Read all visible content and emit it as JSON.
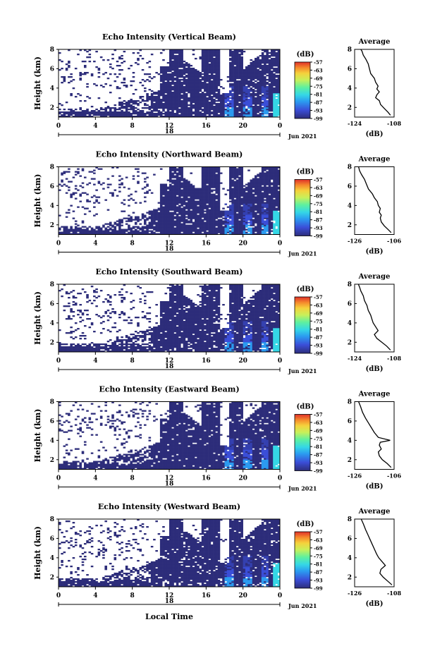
{
  "figure": {
    "xlabel": "Local Time",
    "date_label": "Jun 2021",
    "day_label": "18",
    "colorbar_unit": "(dB)",
    "colorbar_ticks": [
      "-57",
      "-63",
      "-69",
      "-75",
      "-81",
      "-87",
      "-93",
      "-99"
    ],
    "colors": {
      "background_echo": "#2d2d7a",
      "colorbar_stops": [
        "#2d2d7a",
        "#3b4ed8",
        "#2b9bf0",
        "#35d7e6",
        "#5ef0a0",
        "#c8f05a",
        "#f5d23c",
        "#f58a2c",
        "#e0302a"
      ]
    }
  },
  "chart_data": [
    {
      "type": "heatmap",
      "title": "Echo Intensity (Vertical Beam)",
      "ylabel": "Height (km)",
      "xticks": [
        "0",
        "4",
        "8",
        "12",
        "16",
        "20",
        "0"
      ],
      "yticks": [
        "2",
        "4",
        "6",
        "8"
      ],
      "ylim": [
        1,
        8
      ],
      "xlim": [
        0,
        24
      ],
      "clim": [
        -99,
        -57
      ],
      "profile": {
        "title": "Average",
        "xlabel": "(dB)",
        "xticks": [
          "-124",
          "-108"
        ],
        "xlim": [
          -124,
          -108
        ],
        "yticks": [
          "2",
          "4",
          "6",
          "8"
        ],
        "x": [
          -109.5,
          -110.5,
          -112,
          -113.5,
          -114,
          -115.5,
          -115,
          -114,
          -115,
          -114.5,
          -115.5,
          -116,
          -117.5,
          -118,
          -118.5,
          -119.5,
          -120.5,
          -121,
          -121.5
        ],
        "y": [
          1.2,
          1.5,
          1.9,
          2.3,
          2.7,
          3.0,
          3.3,
          3.6,
          3.9,
          4.2,
          4.6,
          5.0,
          5.5,
          6.0,
          6.5,
          7.0,
          7.4,
          7.8,
          8.0
        ]
      }
    },
    {
      "type": "heatmap",
      "title": "Echo Intensity (Northward Beam)",
      "ylabel": "Height (km)",
      "xticks": [
        "0",
        "4",
        "8",
        "12",
        "16",
        "20",
        "0"
      ],
      "yticks": [
        "2",
        "4",
        "6",
        "8"
      ],
      "ylim": [
        1,
        8
      ],
      "xlim": [
        0,
        24
      ],
      "clim": [
        -99,
        -57
      ],
      "profile": {
        "title": "Average",
        "xlabel": "(dB)",
        "xticks": [
          "-126",
          "-106"
        ],
        "xlim": [
          -126,
          -106
        ],
        "yticks": [
          "2",
          "4",
          "6",
          "8"
        ],
        "x": [
          -107.5,
          -109,
          -111,
          -112.5,
          -113,
          -112.5,
          -113.5,
          -113,
          -114,
          -114.5,
          -116,
          -117,
          -119,
          -120,
          -121,
          -122.5,
          -123.5,
          -124
        ],
        "y": [
          1.2,
          1.5,
          1.9,
          2.3,
          2.7,
          3.0,
          3.3,
          3.7,
          4.0,
          4.4,
          4.8,
          5.2,
          5.7,
          6.2,
          6.7,
          7.2,
          7.6,
          8.0
        ]
      }
    },
    {
      "type": "heatmap",
      "title": "Echo Intensity (Southward Beam)",
      "ylabel": "Height (km)",
      "xticks": [
        "0",
        "4",
        "8",
        "12",
        "16",
        "20",
        "0"
      ],
      "yticks": [
        "2",
        "4",
        "6",
        "8"
      ],
      "ylim": [
        1,
        8
      ],
      "xlim": [
        0,
        24
      ],
      "clim": [
        -99,
        -57
      ],
      "profile": {
        "title": "Average",
        "xlabel": "(dB)",
        "xticks": [
          "-124",
          "-108"
        ],
        "xlim": [
          -124,
          -108
        ],
        "yticks": [
          "2",
          "4",
          "6",
          "8"
        ],
        "x": [
          -109.5,
          -111,
          -113,
          -115,
          -116,
          -114.5,
          -115.5,
          -116.5,
          -117,
          -117.5,
          -118.5,
          -119,
          -120,
          -120.5,
          -121.5,
          -122,
          -122.5
        ],
        "y": [
          1.2,
          1.6,
          2.0,
          2.4,
          2.8,
          3.2,
          3.6,
          4.0,
          4.4,
          4.8,
          5.3,
          5.8,
          6.3,
          6.8,
          7.3,
          7.7,
          8.0
        ]
      }
    },
    {
      "type": "heatmap",
      "title": "Echo Intensity (Eastward Beam)",
      "ylabel": "Height (km)",
      "xticks": [
        "0",
        "4",
        "8",
        "12",
        "16",
        "20",
        "0"
      ],
      "yticks": [
        "2",
        "4",
        "6",
        "8"
      ],
      "ylim": [
        1,
        8
      ],
      "xlim": [
        0,
        24
      ],
      "clim": [
        -99,
        -57
      ],
      "profile": {
        "title": "Average",
        "xlabel": "(dB)",
        "xticks": [
          "-126",
          "-106"
        ],
        "xlim": [
          -126,
          -106
        ],
        "yticks": [
          "2",
          "4",
          "6",
          "8"
        ],
        "x": [
          -107.5,
          -109.5,
          -112,
          -113.5,
          -114,
          -112.5,
          -113.5,
          -113,
          -108,
          -114,
          -116,
          -117.5,
          -119,
          -120.5,
          -122,
          -123,
          -124
        ],
        "y": [
          1.2,
          1.6,
          2.0,
          2.4,
          2.8,
          3.1,
          3.5,
          3.8,
          4.0,
          4.3,
          4.8,
          5.3,
          5.8,
          6.3,
          6.9,
          7.5,
          8.0
        ]
      }
    },
    {
      "type": "heatmap",
      "title": "Echo Intensity (Westward Beam)",
      "ylabel": "Height (km)",
      "xticks": [
        "0",
        "4",
        "8",
        "12",
        "16",
        "20",
        "0"
      ],
      "yticks": [
        "2",
        "4",
        "6",
        "8"
      ],
      "ylim": [
        1,
        8
      ],
      "xlim": [
        0,
        24
      ],
      "clim": [
        -99,
        -57
      ],
      "profile": {
        "title": "Average",
        "xlabel": "(dB)",
        "xticks": [
          "-126",
          "-108"
        ],
        "xlim": [
          -126,
          -108
        ],
        "yticks": [
          "2",
          "4",
          "6",
          "8"
        ],
        "x": [
          -109,
          -111,
          -113,
          -114.5,
          -114,
          -112,
          -113.5,
          -115,
          -116,
          -117,
          -118,
          -119,
          -120,
          -121,
          -122,
          -123
        ],
        "y": [
          1.2,
          1.6,
          2.0,
          2.4,
          2.8,
          3.2,
          3.6,
          4.0,
          4.4,
          4.9,
          5.4,
          5.9,
          6.4,
          6.9,
          7.5,
          8.0
        ]
      }
    }
  ]
}
